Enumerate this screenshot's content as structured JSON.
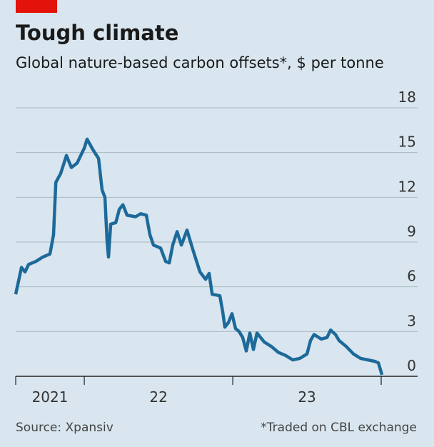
{
  "chart_data": {
    "type": "line",
    "title": "Tough climate",
    "subtitle": "Global nature-based carbon offsets*, $ per tonne",
    "source": "Source: Xpansiv",
    "note": "*Traded on CBL exchange",
    "x": [
      2021.538,
      2021.577,
      2021.601,
      2021.625,
      2021.673,
      2021.721,
      2021.769,
      2021.793,
      2021.808,
      2021.841,
      2021.88,
      2021.913,
      2021.952,
      2021.976,
      2022.0,
      2022.019,
      2022.058,
      2022.096,
      2022.12,
      2022.139,
      2022.154,
      2022.163,
      2022.178,
      2022.212,
      2022.236,
      2022.26,
      2022.288,
      2022.346,
      2022.38,
      2022.418,
      2022.442,
      2022.466,
      2022.514,
      2022.548,
      2022.572,
      2022.596,
      2022.625,
      2022.654,
      2022.692,
      2022.731,
      2022.779,
      2022.817,
      2022.841,
      2022.861,
      2022.913,
      2022.933,
      2022.947,
      2022.971,
      2022.995,
      2023.019,
      2023.043,
      2023.067,
      2023.091,
      2023.115,
      2023.139,
      2023.163,
      2023.212,
      2023.26,
      2023.308,
      2023.356,
      2023.404,
      2023.452,
      2023.5,
      2023.524,
      2023.548,
      2023.596,
      2023.635,
      2023.659,
      2023.692,
      2023.716,
      2023.764,
      2023.813,
      2023.861,
      2023.909,
      2023.957,
      2023.981,
      2024.005
    ],
    "series": [
      {
        "name": "Carbon offsets",
        "color": "#1d6a9a",
        "values": [
          5.5,
          7.3,
          7.0,
          7.5,
          7.7,
          8.0,
          8.2,
          9.5,
          13.0,
          13.6,
          14.8,
          14.0,
          14.3,
          14.8,
          15.3,
          15.9,
          15.2,
          14.6,
          12.5,
          12.0,
          9.0,
          8.0,
          10.2,
          10.3,
          11.2,
          11.5,
          10.8,
          10.7,
          10.9,
          10.8,
          9.5,
          8.8,
          8.6,
          7.7,
          7.6,
          8.8,
          9.7,
          8.8,
          9.8,
          8.5,
          7.0,
          6.5,
          6.9,
          5.5,
          5.4,
          4.3,
          3.3,
          3.6,
          4.2,
          3.2,
          3.0,
          2.6,
          1.7,
          2.9,
          1.8,
          2.9,
          2.3,
          2.0,
          1.6,
          1.4,
          1.1,
          1.2,
          1.5,
          2.4,
          2.8,
          2.5,
          2.6,
          3.1,
          2.8,
          2.4,
          2.0,
          1.5,
          1.2,
          1.1,
          1.0,
          0.9,
          0.1
        ]
      }
    ],
    "xlim": [
      2021.538,
      2024.245
    ],
    "xticks": [
      {
        "value": 2021.5,
        "label": "2021"
      },
      {
        "value": 2022.5,
        "label": "22"
      },
      {
        "value": 2023.5,
        "label": "23"
      }
    ],
    "xtick_marks": [
      2022,
      2023,
      2024
    ],
    "ylim": [
      0,
      18
    ],
    "yticks": [
      0,
      3,
      6,
      9,
      12,
      15,
      18
    ],
    "grid": true
  }
}
